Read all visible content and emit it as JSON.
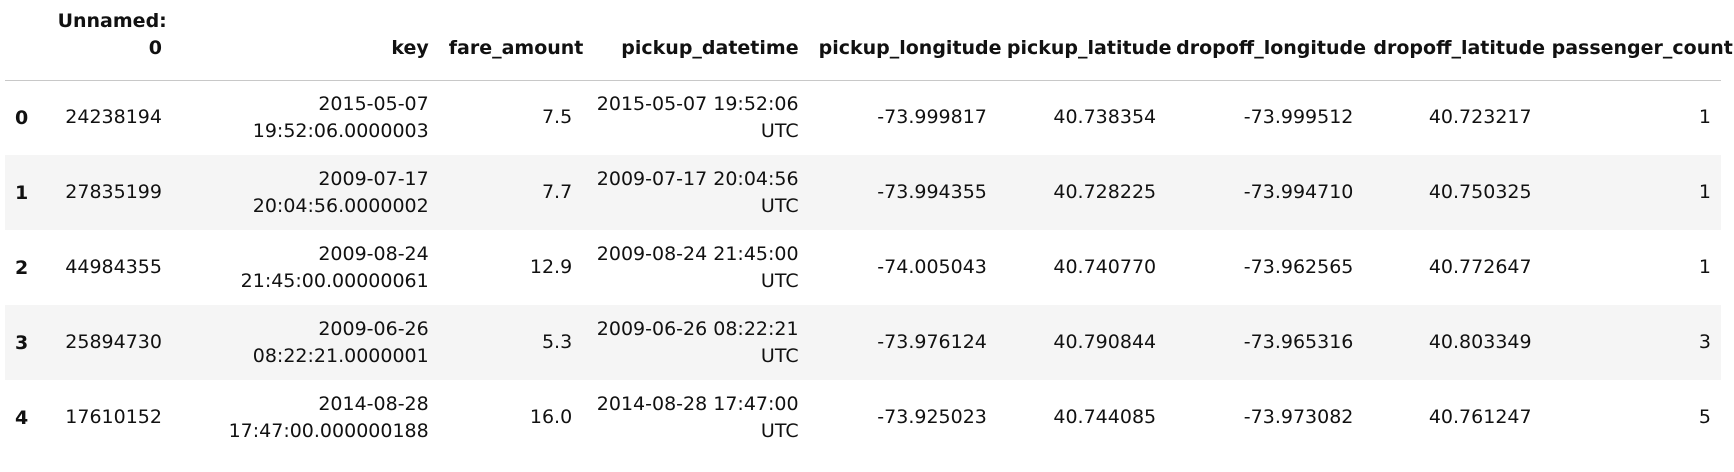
{
  "table": {
    "columns": [
      "Unnamed: 0",
      "key",
      "fare_amount",
      "pickup_datetime",
      "pickup_longitude",
      "pickup_latitude",
      "dropoff_longitude",
      "dropoff_latitude",
      "passenger_count"
    ],
    "rows": [
      {
        "index": "0",
        "unnamed": "24238194",
        "key": "2015-05-07 19:52:06.0000003",
        "fare_amount": "7.5",
        "pickup_datetime": "2015-05-07 19:52:06 UTC",
        "pickup_longitude": "-73.999817",
        "pickup_latitude": "40.738354",
        "dropoff_longitude": "-73.999512",
        "dropoff_latitude": "40.723217",
        "passenger_count": "1"
      },
      {
        "index": "1",
        "unnamed": "27835199",
        "key": "2009-07-17 20:04:56.0000002",
        "fare_amount": "7.7",
        "pickup_datetime": "2009-07-17 20:04:56 UTC",
        "pickup_longitude": "-73.994355",
        "pickup_latitude": "40.728225",
        "dropoff_longitude": "-73.994710",
        "dropoff_latitude": "40.750325",
        "passenger_count": "1"
      },
      {
        "index": "2",
        "unnamed": "44984355",
        "key": "2009-08-24 21:45:00.00000061",
        "fare_amount": "12.9",
        "pickup_datetime": "2009-08-24 21:45:00 UTC",
        "pickup_longitude": "-74.005043",
        "pickup_latitude": "40.740770",
        "dropoff_longitude": "-73.962565",
        "dropoff_latitude": "40.772647",
        "passenger_count": "1"
      },
      {
        "index": "3",
        "unnamed": "25894730",
        "key": "2009-06-26 08:22:21.0000001",
        "fare_amount": "5.3",
        "pickup_datetime": "2009-06-26 08:22:21 UTC",
        "pickup_longitude": "-73.976124",
        "pickup_latitude": "40.790844",
        "dropoff_longitude": "-73.965316",
        "dropoff_latitude": "40.803349",
        "passenger_count": "3"
      },
      {
        "index": "4",
        "unnamed": "17610152",
        "key": "2014-08-28 17:47:00.000000188",
        "fare_amount": "16.0",
        "pickup_datetime": "2014-08-28 17:47:00 UTC",
        "pickup_longitude": "-73.925023",
        "pickup_latitude": "40.744085",
        "dropoff_longitude": "-73.973082",
        "dropoff_latitude": "40.761247",
        "passenger_count": "5"
      }
    ]
  }
}
